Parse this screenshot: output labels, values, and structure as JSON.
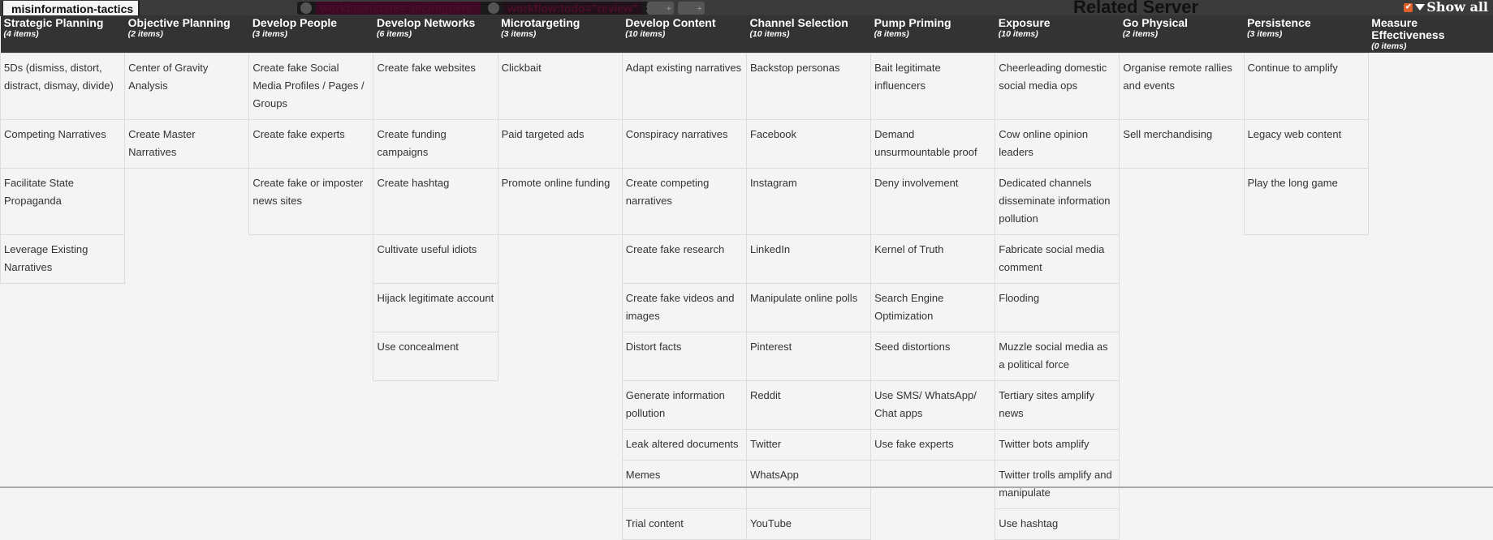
{
  "topbar": {
    "title": "misinformation-tactics",
    "filters": [
      {
        "label": "workflow:state=\"incomplete\"",
        "remove": "x"
      },
      {
        "label": "workflow:todo=\"review\"",
        "remove": "x"
      }
    ],
    "related_server": "Related Server",
    "show_all": "Show all",
    "show_all_checked": true
  },
  "columns": [
    {
      "title": "Strategic Planning",
      "count": "(4 items)",
      "items": [
        "5Ds (dismiss, distort, distract, dismay, divide)",
        "Competing Narratives",
        "Facilitate State Propaganda",
        "Leverage Existing Narratives"
      ]
    },
    {
      "title": "Objective Planning",
      "count": "(2 items)",
      "items": [
        "Center of Gravity Analysis",
        "Create Master Narratives"
      ]
    },
    {
      "title": "Develop People",
      "count": "(3 items)",
      "items": [
        "Create fake Social Media Profiles / Pages / Groups",
        "Create fake experts",
        "Create fake or imposter news sites"
      ]
    },
    {
      "title": "Develop Networks",
      "count": "(6 items)",
      "items": [
        "Create fake websites",
        "Create funding campaigns",
        "Create hashtag",
        "Cultivate useful idiots",
        "Hijack legitimate account",
        "Use concealment"
      ]
    },
    {
      "title": "Microtargeting",
      "count": "(3 items)",
      "items": [
        "Clickbait",
        "Paid targeted ads",
        "Promote online funding"
      ]
    },
    {
      "title": "Develop Content",
      "count": "(10 items)",
      "items": [
        "Adapt existing narratives",
        "Conspiracy narratives",
        "Create competing narratives",
        "Create fake research",
        "Create fake videos and images",
        "Distort facts",
        "Generate information pollution",
        "Leak altered documents",
        "Memes",
        "Trial content"
      ]
    },
    {
      "title": "Channel Selection",
      "count": "(10 items)",
      "items": [
        "Backstop personas",
        "Facebook",
        "Instagram",
        "LinkedIn",
        "Manipulate online polls",
        "Pinterest",
        "Reddit",
        "Twitter",
        "WhatsApp",
        "YouTube"
      ]
    },
    {
      "title": "Pump Priming",
      "count": "(8 items)",
      "items": [
        "Bait legitimate influencers",
        "Demand unsurmountable proof",
        "Deny involvement",
        "Kernel of Truth",
        "Search Engine Optimization",
        "Seed distortions",
        "Use SMS/ WhatsApp/ Chat apps",
        "Use fake experts"
      ]
    },
    {
      "title": "Exposure",
      "count": "(10 items)",
      "items": [
        "Cheerleading domestic social media ops",
        "Cow online opinion leaders",
        "Dedicated channels disseminate information pollution",
        "Fabricate social media comment",
        "Flooding",
        "Muzzle social media as a political force",
        "Tertiary sites amplify news",
        "Twitter bots amplify",
        "Twitter trolls amplify and manipulate",
        "Use hashtag"
      ]
    },
    {
      "title": "Go Physical",
      "count": "(2 items)",
      "items": [
        "Organise remote rallies and events",
        "Sell merchandising"
      ]
    },
    {
      "title": "Persistence",
      "count": "(3 items)",
      "items": [
        "Continue to amplify",
        "Legacy web content",
        "Play the long game"
      ]
    },
    {
      "title": "Measure Effectiveness",
      "count": "(0 items)",
      "items": []
    }
  ]
}
